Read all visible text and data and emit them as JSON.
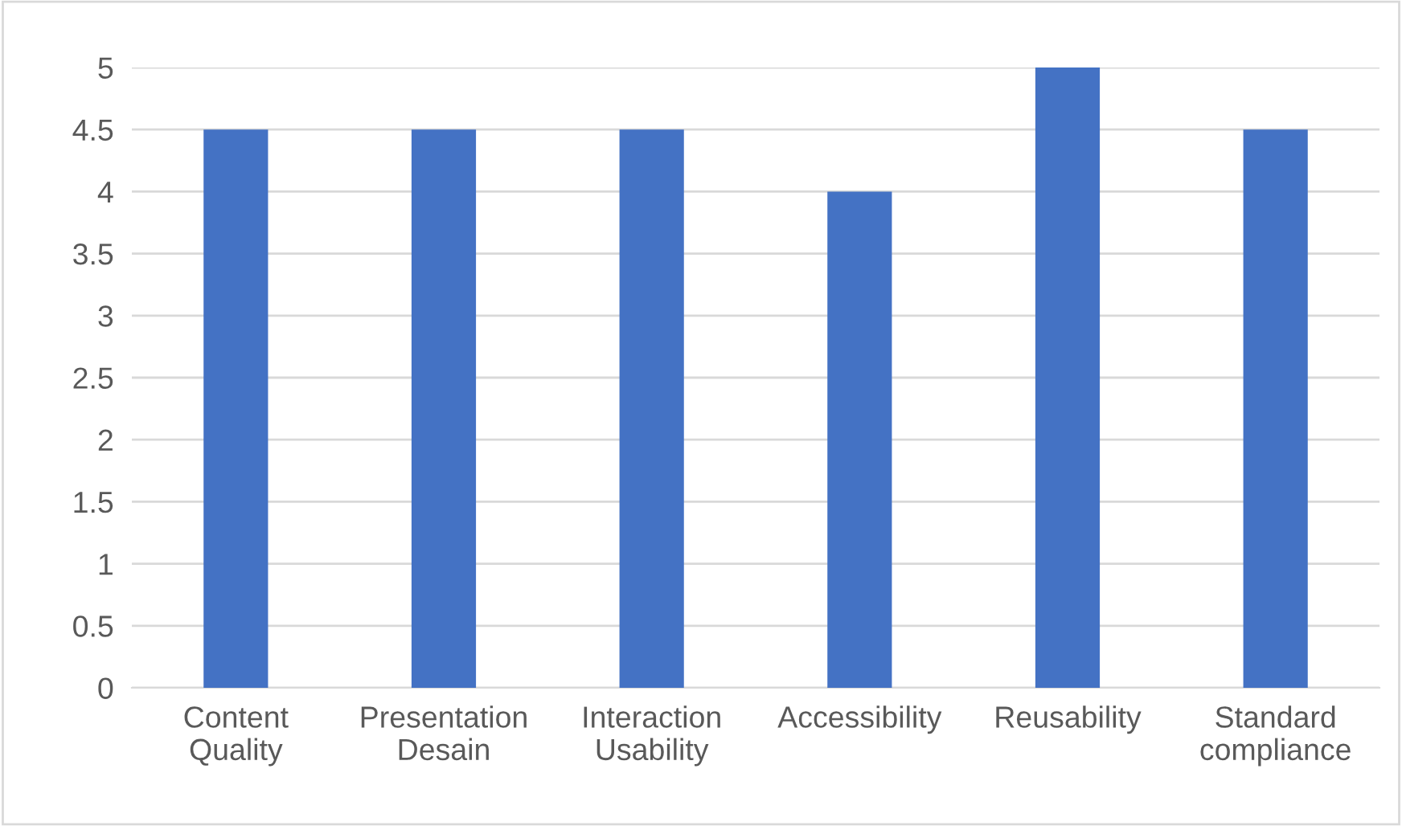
{
  "chart_data": {
    "type": "bar",
    "categories": [
      "Content\nQuality",
      "Presentation\nDesain",
      "Interaction\nUsability",
      "Accessibility",
      "Reusability",
      "Standard\ncompliance"
    ],
    "values": [
      4.5,
      4.5,
      4.5,
      4,
      5,
      4.5
    ],
    "color": "#4472c4",
    "ylim": [
      0,
      5
    ],
    "yticks": [
      0,
      0.5,
      1,
      1.5,
      2,
      2.5,
      3,
      3.5,
      4,
      4.5,
      5
    ],
    "grid": "y",
    "legend": false
  }
}
